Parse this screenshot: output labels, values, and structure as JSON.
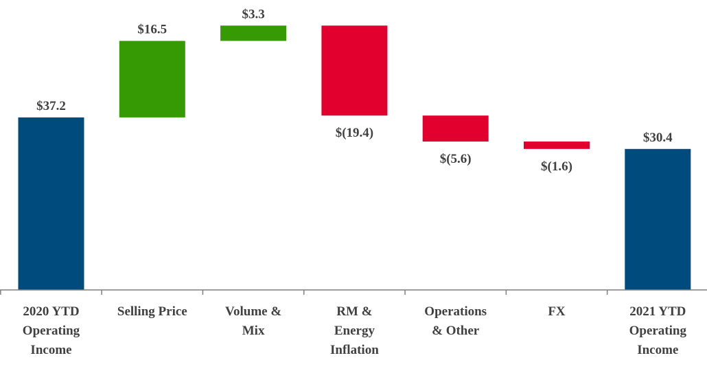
{
  "chart_data": {
    "type": "bar",
    "subtype": "waterfall",
    "categories": [
      [
        "2020 YTD",
        "Operating",
        "Income"
      ],
      [
        "Selling Price"
      ],
      [
        "Volume &",
        "Mix"
      ],
      [
        "RM &",
        "Energy",
        "Inflation"
      ],
      [
        "Operations",
        "& Other"
      ],
      [
        "FX"
      ],
      [
        "2021 YTD",
        "Operating",
        "Income"
      ]
    ],
    "values": [
      37.2,
      16.5,
      3.3,
      -19.4,
      -5.6,
      -1.6,
      30.4
    ],
    "bar_kinds": [
      "total",
      "increase",
      "increase",
      "decrease",
      "decrease",
      "decrease",
      "total"
    ],
    "value_labels": [
      "$37.2",
      "$16.5",
      "$3.3",
      "$(19.4)",
      "$(5.6)",
      "$(1.6)",
      "$30.4"
    ],
    "ylim": [
      0,
      57
    ],
    "grid": false,
    "legend": "none",
    "colors": {
      "total": "#004b7e",
      "increase": "#369a04",
      "decrease": "#e2002e",
      "axis": "#7f7f7f",
      "text": "#404040"
    }
  }
}
